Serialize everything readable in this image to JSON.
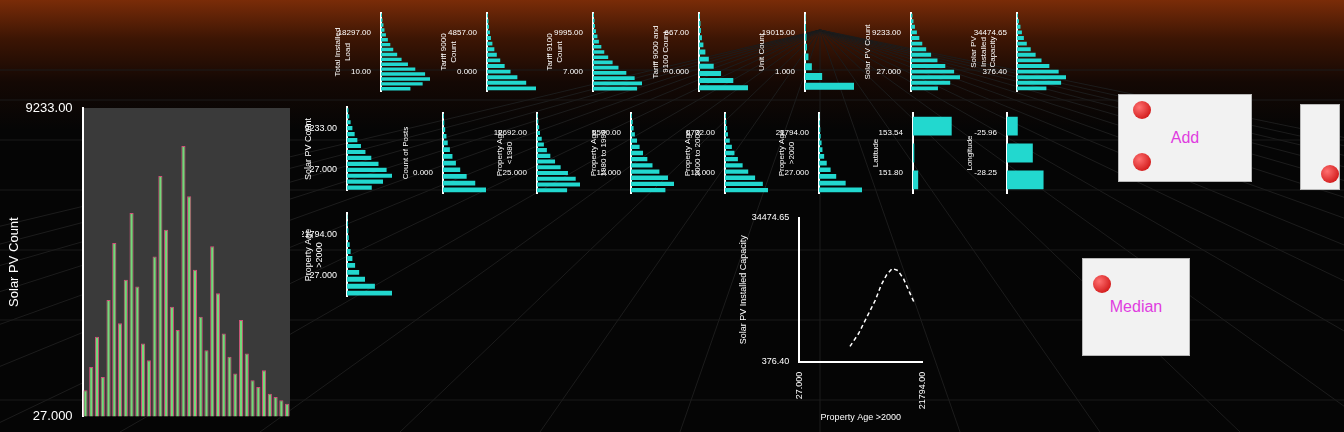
{
  "chart_data": [
    {
      "type": "bar",
      "orientation": "horizontal",
      "ylabel": "Total Installed Load",
      "ylim": [
        10,
        18297
      ],
      "yticks": [
        {
          "value": 10,
          "label": "10.00"
        },
        {
          "value": 18297,
          "label": "18297.00"
        }
      ],
      "xlim": [
        0,
        100
      ],
      "values": [
        60,
        85,
        100,
        90,
        70,
        55,
        42,
        33,
        25,
        19,
        14,
        10,
        7,
        5,
        3,
        2
      ],
      "color": "#22d8cf",
      "tick_labels": "y"
    },
    {
      "type": "bar",
      "orientation": "horizontal",
      "ylabel": "Tariff 9000 Count",
      "ylim": [
        0,
        4857
      ],
      "yticks": [
        {
          "value": 0,
          "label": "0.000"
        },
        {
          "value": 4857,
          "label": "4857.00"
        }
      ],
      "xlim": [
        0,
        100
      ],
      "values": [
        100,
        80,
        62,
        48,
        36,
        27,
        20,
        15,
        11,
        8,
        6,
        4,
        3,
        2
      ],
      "color": "#22d8cf",
      "tick_labels": "y"
    },
    {
      "type": "bar",
      "orientation": "horizontal",
      "ylabel": "Tariff 9100 Count",
      "ylim": [
        7,
        9995
      ],
      "yticks": [
        {
          "value": 7,
          "label": "7.000"
        },
        {
          "value": 9995,
          "label": "9995.00"
        }
      ],
      "xlim": [
        0,
        100
      ],
      "values": [
        90,
        100,
        85,
        68,
        52,
        40,
        31,
        23,
        17,
        12,
        9,
        6,
        4,
        3,
        2
      ],
      "color": "#22d8cf",
      "tick_labels": "y"
    },
    {
      "type": "bar",
      "orientation": "horizontal",
      "ylabel": "Tariff 9000 and 9100 Count",
      "ylim": [
        0,
        667
      ],
      "yticks": [
        {
          "value": 0,
          "label": "0.000"
        },
        {
          "value": 667,
          "label": "667.00"
        }
      ],
      "xlim": [
        0,
        100
      ],
      "values": [
        100,
        70,
        45,
        30,
        20,
        13,
        9,
        6,
        4,
        3,
        2
      ],
      "color": "#22d8cf",
      "tick_labels": "y"
    },
    {
      "type": "bar",
      "orientation": "horizontal",
      "ylabel": "Unit Count",
      "ylim": [
        1,
        19015
      ],
      "yticks": [
        {
          "value": 1,
          "label": "1.000"
        },
        {
          "value": 19015,
          "label": "19015.00"
        }
      ],
      "xlim": [
        0,
        100
      ],
      "values": [
        100,
        35,
        14,
        7,
        4,
        3,
        2,
        1
      ],
      "color": "#22d8cf",
      "tick_labels": "y"
    },
    {
      "type": "bar",
      "orientation": "horizontal",
      "ylabel": "Solar PV Count",
      "ylim": [
        27,
        9233
      ],
      "yticks": [
        {
          "value": 27,
          "label": "27.000"
        },
        {
          "value": 9233,
          "label": "9233.00"
        }
      ],
      "xlim": [
        0,
        100
      ],
      "values": [
        55,
        80,
        100,
        88,
        70,
        54,
        41,
        31,
        23,
        17,
        12,
        8,
        5,
        3
      ],
      "color": "#22d8cf",
      "tick_labels": "y"
    },
    {
      "type": "bar",
      "orientation": "horizontal",
      "ylabel": "Solar PV Installed Capacity",
      "ylim": [
        376.4,
        34474.65
      ],
      "yticks": [
        {
          "value": 376.4,
          "label": "376.40"
        },
        34474.65
      ],
      "xlim": [
        0,
        100
      ],
      "values": [
        60,
        90,
        100,
        85,
        66,
        50,
        38,
        28,
        20,
        14,
        10,
        7,
        4,
        2
      ],
      "color": "#22d8cf",
      "tick_labels": "y"
    },
    {
      "type": "bar",
      "orientation": "horizontal",
      "ylabel": "Count of Posts",
      "ylim": [
        0,
        900
      ],
      "yticks": [
        {
          "value": 0,
          "label": "0.000"
        }
      ],
      "xlim": [
        0,
        100
      ],
      "values": [
        100,
        75,
        55,
        40,
        30,
        22,
        16,
        11,
        8,
        5,
        3,
        2
      ],
      "color": "#22d8cf",
      "tick_labels": "y"
    },
    {
      "type": "bar",
      "orientation": "horizontal",
      "ylabel": "Property Age <1980",
      "ylim": [
        25,
        12692
      ],
      "yticks": [
        {
          "value": 25,
          "label": "25.000"
        },
        {
          "value": 12692,
          "label": "12692.00"
        }
      ],
      "xlim": [
        0,
        100
      ],
      "values": [
        70,
        100,
        90,
        72,
        55,
        42,
        31,
        23,
        16,
        11,
        7,
        5,
        3,
        2
      ],
      "color": "#22d8cf",
      "tick_labels": "y"
    },
    {
      "type": "bar",
      "orientation": "horizontal",
      "ylabel": "Property Age 1980 to 1999",
      "ylim": [
        12,
        5590
      ],
      "yticks": [
        {
          "value": 12,
          "label": "12.000"
        },
        {
          "value": 5590,
          "label": "5590.00"
        }
      ],
      "xlim": [
        0,
        100
      ],
      "values": [
        80,
        100,
        86,
        66,
        50,
        38,
        28,
        20,
        14,
        9,
        6,
        4,
        2
      ],
      "color": "#22d8cf",
      "tick_labels": "y"
    },
    {
      "type": "bar",
      "orientation": "horizontal",
      "ylabel": "Property Age 2000 to 2009",
      "ylim": [
        13,
        6732
      ],
      "yticks": [
        {
          "value": 13,
          "label": "13.000"
        },
        {
          "value": 6732,
          "label": "6732.00"
        }
      ],
      "xlim": [
        0,
        100
      ],
      "values": [
        100,
        88,
        70,
        54,
        41,
        30,
        22,
        16,
        11,
        7,
        5,
        3,
        2
      ],
      "color": "#22d8cf",
      "tick_labels": "y"
    },
    {
      "type": "bar",
      "orientation": "horizontal",
      "ylabel": "Property Age >2000",
      "ylim": [
        27,
        21794
      ],
      "yticks": [
        {
          "value": 27,
          "label": "27.000"
        },
        {
          "value": 21794,
          "label": "21794.00"
        }
      ],
      "xlim": [
        0,
        100
      ],
      "values": [
        100,
        62,
        40,
        27,
        18,
        12,
        8,
        6,
        4,
        3,
        2,
        1
      ],
      "color": "#22d8cf",
      "tick_labels": "y"
    },
    {
      "type": "bar",
      "orientation": "horizontal",
      "ylabel": "Latitude",
      "ylim": [
        151.8,
        153.54
      ],
      "yticks": [
        {
          "value": 151.8,
          "label": "151.80"
        },
        153.54
      ],
      "xlim": [
        0,
        100
      ],
      "values": [
        12,
        3,
        90
      ],
      "color": "#22d8cf",
      "tick_labels": "y"
    },
    {
      "type": "bar",
      "orientation": "horizontal",
      "ylabel": "Longitude",
      "ylim": [
        -28.25,
        -25.96
      ],
      "yticks": [
        -28.25,
        -25.96
      ],
      "xlim": [
        0,
        100
      ],
      "values": [
        85,
        60,
        25
      ],
      "color": "#22d8cf",
      "tick_labels": "y"
    },
    {
      "type": "bar",
      "orientation": "horizontal",
      "ylabel": "Solar PV Count",
      "ylim": [
        27,
        9233
      ],
      "yticks": [
        {
          "value": 27,
          "label": "27.000"
        },
        {
          "value": 9233,
          "label": "9233.00"
        }
      ],
      "xlim": [
        0,
        100
      ],
      "values": [
        55,
        80,
        100,
        88,
        70,
        54,
        41,
        31,
        23,
        17,
        12,
        8,
        5,
        3
      ],
      "color": "#22d8cf",
      "tick_labels": "y"
    },
    {
      "type": "bar",
      "orientation": "horizontal",
      "ylabel": "Property Age >2000",
      "ylim": [
        27,
        21794
      ],
      "yticks": [
        {
          "value": 27,
          "label": "27.000"
        },
        {
          "value": 21794,
          "label": "21794.00"
        }
      ],
      "xlim": [
        0,
        100
      ],
      "values": [
        100,
        62,
        40,
        27,
        18,
        12,
        8,
        6,
        4,
        3,
        2,
        1
      ],
      "color": "#22d8cf",
      "tick_labels": "y"
    },
    {
      "type": "bar",
      "ylabel": "Solar PV Count",
      "ylim": [
        27,
        9233
      ],
      "yticks": [
        {
          "value": 27,
          "label": "27.000"
        },
        {
          "value": 9233,
          "label": "9233.00"
        }
      ],
      "values": [
        800,
        1500,
        2400,
        1200,
        3500,
        5200,
        2800,
        4100,
        6100,
        3900,
        2200,
        1700,
        4800,
        7200,
        5600,
        3300,
        2600,
        8100,
        6600,
        4400,
        3000,
        2000,
        5100,
        3700,
        2500,
        1800,
        1300,
        2900,
        1900,
        1100,
        900,
        1400,
        700,
        600,
        500,
        400
      ],
      "color": "#74d97a",
      "tick_labels": "y"
    },
    {
      "type": "line",
      "xlabel": "Property Age >2000",
      "ylabel": "Solar PV Installed Capacity",
      "x": [
        9000,
        10500,
        12000,
        13500,
        14500,
        15500,
        16500,
        17500,
        18500,
        19500,
        20500
      ],
      "values": [
        4000,
        7000,
        11000,
        15000,
        18500,
        21000,
        22500,
        22000,
        20000,
        17000,
        14000
      ],
      "xlim": [
        27,
        21794
      ],
      "xticks": [
        {
          "value": 27,
          "label": "27.000"
        },
        {
          "value": 21794,
          "label": "21794.00"
        }
      ],
      "ylim": [
        376.4,
        34474.65
      ],
      "yticks": [
        {
          "value": 376.4,
          "label": "376.40"
        },
        34474.65
      ],
      "color": "#ffffff",
      "line_style": "dashed"
    }
  ],
  "buttons": [
    "Add",
    "Median"
  ]
}
